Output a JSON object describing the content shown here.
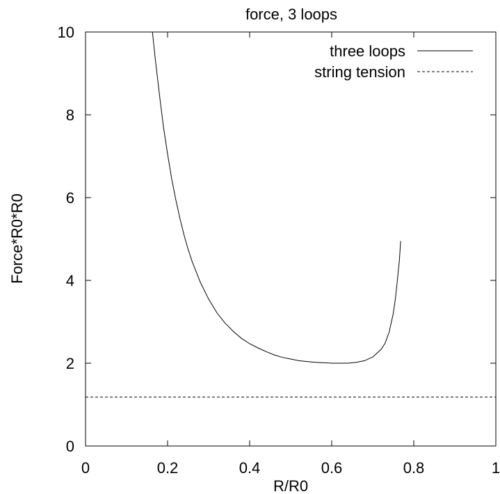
{
  "chart_data": {
    "type": "line",
    "title": "force, 3 loops",
    "xlabel": "R/R0",
    "ylabel": "Force*R0*R0",
    "xlim": [
      0,
      1
    ],
    "ylim": [
      0,
      10
    ],
    "xticks": [
      0,
      0.2,
      0.4,
      0.6,
      0.8,
      1
    ],
    "xtick_labels": [
      "0",
      "0.2",
      "0.4",
      "0.6",
      "0.8",
      "1"
    ],
    "yticks": [
      0,
      2,
      4,
      6,
      8,
      10
    ],
    "ytick_labels": [
      "0",
      "2",
      "4",
      "6",
      "8",
      "10"
    ],
    "grid": false,
    "legend_position": "top-right",
    "series": [
      {
        "name": "three loops",
        "style": "solid",
        "color": "#000000",
        "x": [
          0.163,
          0.17,
          0.18,
          0.19,
          0.2,
          0.21,
          0.22,
          0.23,
          0.24,
          0.25,
          0.26,
          0.28,
          0.3,
          0.32,
          0.34,
          0.36,
          0.38,
          0.4,
          0.42,
          0.44,
          0.46,
          0.48,
          0.5,
          0.52,
          0.54,
          0.56,
          0.58,
          0.6,
          0.62,
          0.64,
          0.66,
          0.68,
          0.7,
          0.72,
          0.73,
          0.74,
          0.75,
          0.755,
          0.76,
          0.765,
          0.768
        ],
        "y": [
          10.0,
          9.35,
          8.5,
          7.7,
          7.05,
          6.45,
          5.95,
          5.5,
          5.1,
          4.75,
          4.45,
          3.95,
          3.55,
          3.22,
          2.97,
          2.77,
          2.6,
          2.47,
          2.37,
          2.28,
          2.2,
          2.14,
          2.1,
          2.06,
          2.04,
          2.02,
          2.01,
          2.0,
          2.0,
          2.0,
          2.02,
          2.06,
          2.15,
          2.33,
          2.48,
          2.75,
          3.2,
          3.55,
          4.0,
          4.5,
          4.95
        ]
      },
      {
        "name": "string tension",
        "style": "dashed",
        "color": "#000000",
        "x": [
          0,
          1
        ],
        "y": [
          1.18,
          1.18
        ]
      }
    ]
  }
}
